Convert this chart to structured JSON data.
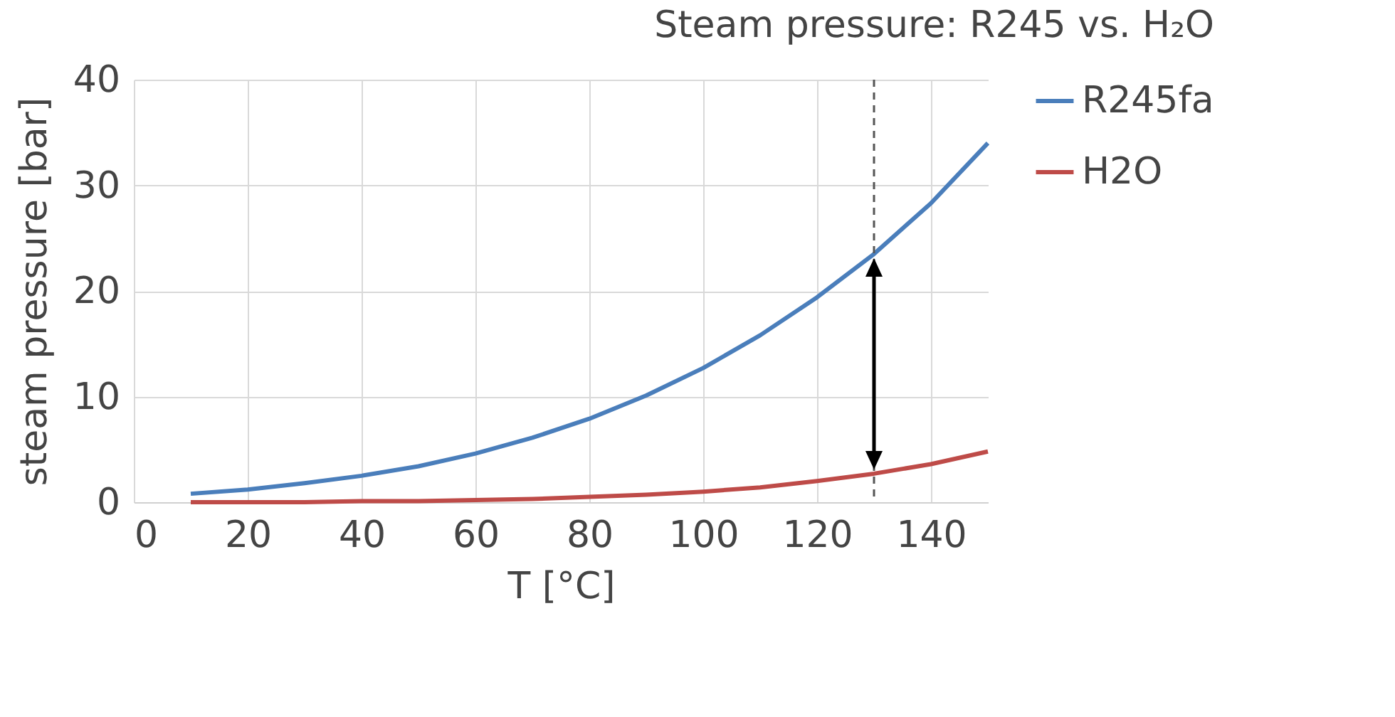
{
  "chart_data": {
    "type": "line",
    "title": "Steam pressure: R245 vs. H₂O",
    "xlabel": "T [°C]",
    "ylabel": "steam pressure [bar]",
    "x": [
      10,
      20,
      30,
      40,
      50,
      60,
      70,
      80,
      90,
      100,
      110,
      120,
      130,
      140,
      150
    ],
    "series": [
      {
        "name": "R245fa",
        "color": "#4a7ebb",
        "values": [
          0.8,
          1.2,
          1.8,
          2.5,
          3.4,
          4.6,
          6.1,
          7.9,
          10.1,
          12.7,
          15.8,
          19.4,
          23.5,
          28.3,
          34
        ]
      },
      {
        "name": "H2O",
        "color": "#be4b48",
        "values": [
          0,
          0,
          0,
          0.1,
          0.1,
          0.2,
          0.3,
          0.5,
          0.7,
          1.0,
          1.4,
          2.0,
          2.7,
          3.6,
          4.8
        ]
      }
    ],
    "xlim": [
      0,
      150
    ],
    "xticks": [
      0,
      20,
      40,
      60,
      80,
      100,
      120,
      140
    ],
    "ylim": [
      0,
      40
    ],
    "yticks": [
      0,
      10,
      20,
      30,
      40
    ],
    "ref_lines": [
      {
        "axis": "x",
        "value": 130,
        "line_style": "dashed",
        "color": "#555555"
      }
    ],
    "grid": true,
    "legend": "right",
    "marker": "none",
    "line_style": "solid"
  }
}
